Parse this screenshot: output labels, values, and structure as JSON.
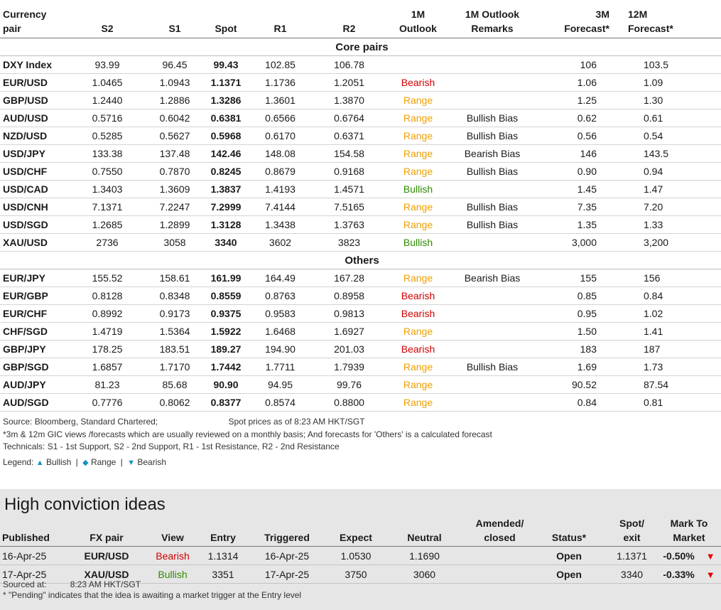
{
  "headers": {
    "pair": [
      "Currency",
      "pair"
    ],
    "s2": "S2",
    "s1": "S1",
    "spot": "Spot",
    "r1": "R1",
    "r2": "R2",
    "outlook": [
      "1M",
      "Outlook"
    ],
    "remarks": [
      "1M Outlook",
      "Remarks"
    ],
    "f3m": [
      "3M",
      "Forecast*"
    ],
    "f12m": [
      "12M",
      "Forecast*"
    ]
  },
  "sections": [
    {
      "title": "Core pairs",
      "rows": [
        {
          "pair": "DXY Index",
          "s2": "93.99",
          "s1": "96.45",
          "spot": "99.43",
          "r1": "102.85",
          "r2": "106.78",
          "outlook": "",
          "outlook_class": "",
          "remarks": "",
          "f3m": "106",
          "f12m": "103.5"
        },
        {
          "pair": "EUR/USD",
          "s2": "1.0465",
          "s1": "1.0943",
          "spot": "1.1371",
          "r1": "1.1736",
          "r2": "1.2051",
          "outlook": "Bearish",
          "outlook_class": "bear",
          "remarks": "",
          "f3m": "1.06",
          "f12m": "1.09"
        },
        {
          "pair": "GBP/USD",
          "s2": "1.2440",
          "s1": "1.2886",
          "spot": "1.3286",
          "r1": "1.3601",
          "r2": "1.3870",
          "outlook": "Range",
          "outlook_class": "range",
          "remarks": "",
          "f3m": "1.25",
          "f12m": "1.30"
        },
        {
          "pair": "AUD/USD",
          "s2": "0.5716",
          "s1": "0.6042",
          "spot": "0.6381",
          "r1": "0.6566",
          "r2": "0.6764",
          "outlook": "Range",
          "outlook_class": "range",
          "remarks": "Bullish Bias",
          "f3m": "0.62",
          "f12m": "0.61"
        },
        {
          "pair": "NZD/USD",
          "s2": "0.5285",
          "s1": "0.5627",
          "spot": "0.5968",
          "r1": "0.6170",
          "r2": "0.6371",
          "outlook": "Range",
          "outlook_class": "range",
          "remarks": "Bullish Bias",
          "f3m": "0.56",
          "f12m": "0.54"
        },
        {
          "pair": "USD/JPY",
          "s2": "133.38",
          "s1": "137.48",
          "spot": "142.46",
          "r1": "148.08",
          "r2": "154.58",
          "outlook": "Range",
          "outlook_class": "range",
          "remarks": "Bearish Bias",
          "f3m": "146",
          "f12m": "143.5"
        },
        {
          "pair": "USD/CHF",
          "s2": "0.7550",
          "s1": "0.7870",
          "spot": "0.8245",
          "r1": "0.8679",
          "r2": "0.9168",
          "outlook": "Range",
          "outlook_class": "range",
          "remarks": "Bullish Bias",
          "f3m": "0.90",
          "f12m": "0.94"
        },
        {
          "pair": "USD/CAD",
          "s2": "1.3403",
          "s1": "1.3609",
          "spot": "1.3837",
          "r1": "1.4193",
          "r2": "1.4571",
          "outlook": "Bullish",
          "outlook_class": "bull",
          "remarks": "",
          "f3m": "1.45",
          "f12m": "1.47"
        },
        {
          "pair": "USD/CNH",
          "s2": "7.1371",
          "s1": "7.2247",
          "spot": "7.2999",
          "r1": "7.4144",
          "r2": "7.5165",
          "outlook": "Range",
          "outlook_class": "range",
          "remarks": "Bullish Bias",
          "f3m": "7.35",
          "f12m": "7.20"
        },
        {
          "pair": "USD/SGD",
          "s2": "1.2685",
          "s1": "1.2899",
          "spot": "1.3128",
          "r1": "1.3438",
          "r2": "1.3763",
          "outlook": "Range",
          "outlook_class": "range",
          "remarks": "Bullish Bias",
          "f3m": "1.35",
          "f12m": "1.33"
        },
        {
          "pair": "XAU/USD",
          "s2": "2736",
          "s1": "3058",
          "spot": "3340",
          "r1": "3602",
          "r2": "3823",
          "outlook": "Bullish",
          "outlook_class": "bull",
          "remarks": "",
          "f3m": "3,000",
          "f12m": "3,200"
        }
      ]
    },
    {
      "title": "Others",
      "rows": [
        {
          "pair": "EUR/JPY",
          "s2": "155.52",
          "s1": "158.61",
          "spot": "161.99",
          "r1": "164.49",
          "r2": "167.28",
          "outlook": "Range",
          "outlook_class": "range",
          "remarks": "Bearish Bias",
          "f3m": "155",
          "f12m": "156"
        },
        {
          "pair": "EUR/GBP",
          "s2": "0.8128",
          "s1": "0.8348",
          "spot": "0.8559",
          "r1": "0.8763",
          "r2": "0.8958",
          "outlook": "Bearish",
          "outlook_class": "bear",
          "remarks": "",
          "f3m": "0.85",
          "f12m": "0.84"
        },
        {
          "pair": "EUR/CHF",
          "s2": "0.8992",
          "s1": "0.9173",
          "spot": "0.9375",
          "r1": "0.9583",
          "r2": "0.9813",
          "outlook": "Bearish",
          "outlook_class": "bear",
          "remarks": "",
          "f3m": "0.95",
          "f12m": "1.02"
        },
        {
          "pair": "CHF/SGD",
          "s2": "1.4719",
          "s1": "1.5364",
          "spot": "1.5922",
          "r1": "1.6468",
          "r2": "1.6927",
          "outlook": "Range",
          "outlook_class": "range",
          "remarks": "",
          "f3m": "1.50",
          "f12m": "1.41"
        },
        {
          "pair": "GBP/JPY",
          "s2": "178.25",
          "s1": "183.51",
          "spot": "189.27",
          "r1": "194.90",
          "r2": "201.03",
          "outlook": "Bearish",
          "outlook_class": "bear",
          "remarks": "",
          "f3m": "183",
          "f12m": "187"
        },
        {
          "pair": "GBP/SGD",
          "s2": "1.6857",
          "s1": "1.7170",
          "spot": "1.7442",
          "r1": "1.7711",
          "r2": "1.7939",
          "outlook": "Range",
          "outlook_class": "range",
          "remarks": "Bullish Bias",
          "f3m": "1.69",
          "f12m": "1.73"
        },
        {
          "pair": "AUD/JPY",
          "s2": "81.23",
          "s1": "85.68",
          "spot": "90.90",
          "r1": "94.95",
          "r2": "99.76",
          "outlook": "Range",
          "outlook_class": "range",
          "remarks": "",
          "f3m": "90.52",
          "f12m": "87.54"
        },
        {
          "pair": "AUD/SGD",
          "s2": "0.7776",
          "s1": "0.8062",
          "spot": "0.8377",
          "r1": "0.8574",
          "r2": "0.8800",
          "outlook": "Range",
          "outlook_class": "range",
          "remarks": "",
          "f3m": "0.84",
          "f12m": "0.81"
        }
      ]
    }
  ],
  "notes": {
    "source": "Source: Bloomberg, Standard Chartered;",
    "spot_time": "Spot prices as of 8:23 AM HKT/SGT",
    "footnote": "*3m & 12m GIC views /forecasts which are usually reviewed on a monthly basis; And forecasts for 'Others' is a calculated forecast",
    "technicals": "Technicals: S1 - 1st Support, S2 - 2nd Support, R1 - 1st Resistance, R2 - 2nd Resistance",
    "legend_label": "Legend:",
    "legend_bullish": "Bullish",
    "legend_range": "Range",
    "legend_bearish": "Bearish",
    "legend_sep": "|"
  },
  "high_conviction": {
    "title": "High conviction ideas",
    "headers": {
      "published": "Published",
      "pair": "FX pair",
      "view": "View",
      "entry": "Entry",
      "triggered": "Triggered",
      "expect": "Expect",
      "neutral": "Neutral",
      "amended": [
        "Amended/",
        "closed"
      ],
      "status": "Status*",
      "spot": [
        "Spot/",
        "exit"
      ],
      "mtm": [
        "Mark To",
        "Market"
      ]
    },
    "rows": [
      {
        "published": "16-Apr-25",
        "pair": "EUR/USD",
        "view": "Bearish",
        "view_class": "bear",
        "entry": "1.1314",
        "triggered": "16-Apr-25",
        "expect": "1.0530",
        "neutral": "1.1690",
        "amended": "",
        "status": "Open",
        "spot": "1.1371",
        "mtm": "-0.50%"
      },
      {
        "published": "17-Apr-25",
        "pair": "XAU/USD",
        "view": "Bullish",
        "view_class": "bull",
        "entry": "3351",
        "triggered": "17-Apr-25",
        "expect": "3750",
        "neutral": "3060",
        "amended": "",
        "status": "Open",
        "spot": "3340",
        "mtm": "-0.33%"
      }
    ],
    "sourced_label": "Sourced at:",
    "sourced_time": "8:23 AM HKT/SGT",
    "pending_note": "* \"Pending\" indicates that the idea is awaiting a market trigger at the Entry level"
  },
  "colors": {
    "bearish": "#d10000",
    "range": "#f0a000",
    "bullish": "#2e8b00",
    "legend_icon": "#1890c8",
    "panel_bg": "#e6e6e6"
  },
  "icons": {
    "legend_bullish": "triangle-up-icon",
    "legend_range": "diamond-icon",
    "legend_bearish": "triangle-down-icon",
    "mtm_negative": "triangle-down-icon"
  }
}
